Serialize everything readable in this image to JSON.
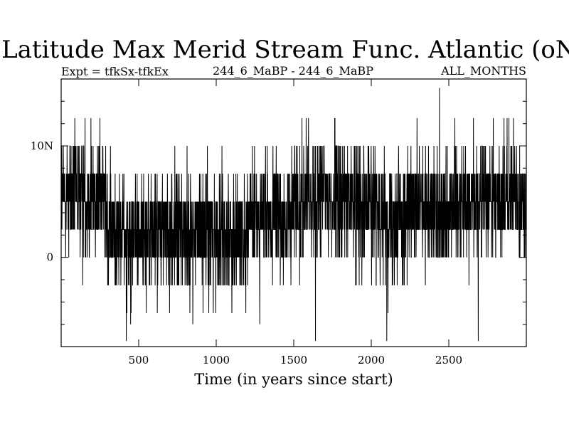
{
  "chart_data": {
    "type": "line",
    "title": "Latitude Max Merid Stream Func. Atlantic (oN)",
    "subtitle_left": "Expt = tfkSx-tfkEx",
    "subtitle_center": "244_6_MaBP - 244_6_MaBP",
    "subtitle_right": "ALL_MONTHS",
    "xlabel": "Time (in years since start)",
    "ylabel": "",
    "xlim": [
      0,
      3000
    ],
    "ylim": [
      -8,
      16
    ],
    "x_ticks": [
      500,
      1000,
      1500,
      2000,
      2500
    ],
    "x_tick_labels": [
      "500",
      "1000",
      "1500",
      "2000",
      "2500"
    ],
    "y_ticks": [
      0,
      10
    ],
    "y_tick_labels": [
      "0",
      "10N"
    ],
    "y_minor_ticks": [
      -6,
      -4,
      -2,
      2,
      4,
      6,
      8,
      12,
      14
    ],
    "discrete_levels": [
      -6,
      -5,
      -2.5,
      0,
      2.5,
      5,
      7.5,
      10,
      12.5
    ],
    "series": [
      {
        "name": "latitude_max",
        "x_start": 1,
        "x_step": 1,
        "count": 3000,
        "mean_by_segment": [
          {
            "x": [
              0,
              300
            ],
            "mean": 5.5
          },
          {
            "x": [
              300,
              1200
            ],
            "mean": 2.2
          },
          {
            "x": [
              1200,
              1500
            ],
            "mean": 3.5
          },
          {
            "x": [
              1500,
              2000
            ],
            "mean": 5.2
          },
          {
            "x": [
              2000,
              2500
            ],
            "mean": 4.0
          },
          {
            "x": [
              2500,
              3000
            ],
            "mean": 5.2
          }
        ],
        "extremes": [
          {
            "x": 2440,
            "y": 15.2
          },
          {
            "x": 420,
            "y": -7.5
          },
          {
            "x": 1640,
            "y": -7.5
          },
          {
            "x": 2100,
            "y": -7.5
          },
          {
            "x": 2690,
            "y": -7.5
          }
        ]
      }
    ]
  }
}
